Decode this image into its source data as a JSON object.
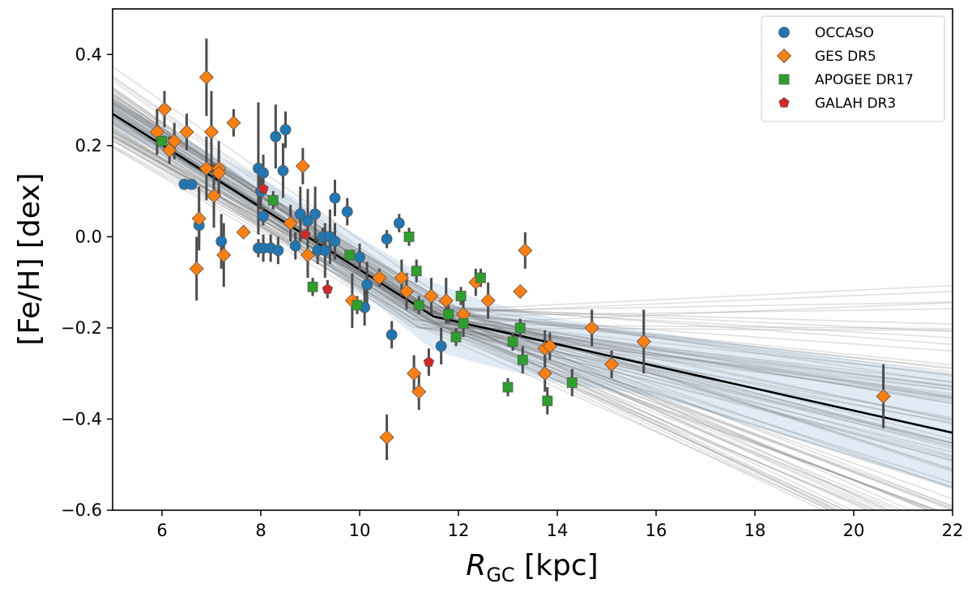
{
  "chart_data": {
    "type": "scatter",
    "title": "",
    "xlabel": {
      "main": "R",
      "sub": "GC",
      "unit": " [kpc]"
    },
    "ylabel": "[Fe/H] [dex]",
    "xlim": [
      5,
      22
    ],
    "ylim": [
      -0.6,
      0.5
    ],
    "xticks": [
      6,
      8,
      10,
      12,
      14,
      16,
      18,
      20,
      22
    ],
    "yticks": [
      -0.6,
      -0.4,
      -0.2,
      0.0,
      0.2,
      0.4
    ],
    "ytick_labels": [
      "−0.6",
      "−0.4",
      "−0.2",
      "0.0",
      "0.2",
      "0.4"
    ],
    "legend_position": "top-right",
    "colors": {
      "occaso": "#1f77b4",
      "ges": "#ff7f0e",
      "apogee": "#2ca02c",
      "galah": "#d62728",
      "errorbar": "#4d4d4d",
      "band": "#d5e4f1",
      "fit": "#000000",
      "mc_lines": "#707070"
    },
    "fit": {
      "description": "Broken linear gradient (median fit)",
      "x": [
        5,
        11.5,
        22
      ],
      "y": [
        0.27,
        -0.175,
        -0.43
      ]
    },
    "band": {
      "x": [
        5,
        6,
        8,
        10,
        11.5,
        12.5,
        14,
        16,
        22
      ],
      "upper": [
        0.3,
        0.24,
        0.13,
        0.0,
        -0.1,
        -0.14,
        -0.18,
        -0.21,
        -0.3
      ],
      "lower": [
        0.24,
        0.18,
        0.05,
        -0.12,
        -0.25,
        -0.28,
        -0.32,
        -0.35,
        -0.55
      ]
    },
    "series": [
      {
        "name": "OCCASO",
        "marker": "circle",
        "points": [
          {
            "x": 6.45,
            "y": 0.115,
            "err": 0.0
          },
          {
            "x": 6.6,
            "y": 0.115,
            "err": 0.0
          },
          {
            "x": 6.75,
            "y": 0.025,
            "err": 0.04
          },
          {
            "x": 7.2,
            "y": -0.01,
            "err": 0.06
          },
          {
            "x": 7.95,
            "y": 0.15,
            "err": 0.145
          },
          {
            "x": 8.0,
            "y": 0.1,
            "err": 0.04
          },
          {
            "x": 8.05,
            "y": 0.14,
            "err": 0.04
          },
          {
            "x": 7.95,
            "y": -0.025,
            "err": 0.02
          },
          {
            "x": 8.05,
            "y": -0.025,
            "err": 0.03
          },
          {
            "x": 8.05,
            "y": 0.045,
            "err": 0.02
          },
          {
            "x": 8.2,
            "y": -0.025,
            "err": 0.03
          },
          {
            "x": 8.3,
            "y": 0.22,
            "err": 0.07
          },
          {
            "x": 8.35,
            "y": -0.03,
            "err": 0.03
          },
          {
            "x": 8.45,
            "y": 0.145,
            "err": 0.06
          },
          {
            "x": 8.5,
            "y": 0.235,
            "err": 0.04
          },
          {
            "x": 8.7,
            "y": -0.02,
            "err": 0.03
          },
          {
            "x": 8.8,
            "y": 0.05,
            "err": 0.06
          },
          {
            "x": 8.95,
            "y": 0.035,
            "err": 0.07
          },
          {
            "x": 9.1,
            "y": 0.05,
            "err": 0.06
          },
          {
            "x": 9.15,
            "y": -0.03,
            "err": 0.03
          },
          {
            "x": 9.3,
            "y": -0.03,
            "err": 0.06
          },
          {
            "x": 9.25,
            "y": 0.0,
            "err": 0.02
          },
          {
            "x": 9.4,
            "y": 0.0,
            "err": 0.06
          },
          {
            "x": 9.5,
            "y": -0.01,
            "err": 0.04
          },
          {
            "x": 9.5,
            "y": 0.085,
            "err": 0.04
          },
          {
            "x": 9.75,
            "y": 0.055,
            "err": 0.03
          },
          {
            "x": 10.0,
            "y": -0.045,
            "err": 0.03
          },
          {
            "x": 10.1,
            "y": -0.155,
            "err": 0.04
          },
          {
            "x": 10.15,
            "y": -0.105,
            "err": 0.05
          },
          {
            "x": 10.55,
            "y": -0.005,
            "err": 0.02
          },
          {
            "x": 10.65,
            "y": -0.215,
            "err": 0.03
          },
          {
            "x": 10.8,
            "y": 0.03,
            "err": 0.02
          },
          {
            "x": 11.65,
            "y": -0.24,
            "err": 0.04
          }
        ]
      },
      {
        "name": "GES DR5",
        "marker": "diamond",
        "points": [
          {
            "x": 5.9,
            "y": 0.23,
            "err": 0.05
          },
          {
            "x": 6.05,
            "y": 0.28,
            "err": 0.04
          },
          {
            "x": 6.15,
            "y": 0.19,
            "err": 0.03
          },
          {
            "x": 6.25,
            "y": 0.21,
            "err": 0.04
          },
          {
            "x": 6.5,
            "y": 0.23,
            "err": 0.04
          },
          {
            "x": 6.7,
            "y": -0.07,
            "err": 0.07
          },
          {
            "x": 6.75,
            "y": 0.04,
            "err": 0.07
          },
          {
            "x": 6.9,
            "y": 0.35,
            "err": 0.085
          },
          {
            "x": 6.9,
            "y": 0.15,
            "err": 0.07
          },
          {
            "x": 7.0,
            "y": 0.23,
            "err": 0.09
          },
          {
            "x": 7.05,
            "y": 0.09,
            "err": 0.07
          },
          {
            "x": 7.15,
            "y": 0.15,
            "err": 0.06
          },
          {
            "x": 7.15,
            "y": 0.14,
            "err": 0.05
          },
          {
            "x": 7.25,
            "y": -0.04,
            "err": 0.07
          },
          {
            "x": 7.45,
            "y": 0.25,
            "err": 0.03
          },
          {
            "x": 7.65,
            "y": 0.01,
            "err": 0.0
          },
          {
            "x": 8.6,
            "y": 0.03,
            "err": 0.04
          },
          {
            "x": 8.85,
            "y": 0.155,
            "err": 0.04
          },
          {
            "x": 8.95,
            "y": -0.04,
            "err": 0.05
          },
          {
            "x": 9.85,
            "y": -0.14,
            "err": 0.06
          },
          {
            "x": 10.4,
            "y": -0.09,
            "err": 0.02
          },
          {
            "x": 10.85,
            "y": -0.09,
            "err": 0.04
          },
          {
            "x": 10.95,
            "y": -0.12,
            "err": 0.04
          },
          {
            "x": 11.1,
            "y": -0.3,
            "err": 0.04
          },
          {
            "x": 11.2,
            "y": -0.34,
            "err": 0.04
          },
          {
            "x": 11.45,
            "y": -0.13,
            "err": 0.04
          },
          {
            "x": 11.75,
            "y": -0.14,
            "err": 0.05
          },
          {
            "x": 12.1,
            "y": -0.17,
            "err": 0.03
          },
          {
            "x": 12.35,
            "y": -0.1,
            "err": 0.03
          },
          {
            "x": 12.6,
            "y": -0.14,
            "err": 0.04
          },
          {
            "x": 13.25,
            "y": -0.12,
            "err": 0.0
          },
          {
            "x": 13.35,
            "y": -0.03,
            "err": 0.04
          },
          {
            "x": 13.75,
            "y": -0.3,
            "err": 0.04
          },
          {
            "x": 13.75,
            "y": -0.245,
            "err": 0.04
          },
          {
            "x": 13.85,
            "y": -0.24,
            "err": 0.03
          },
          {
            "x": 14.7,
            "y": -0.2,
            "err": 0.04
          },
          {
            "x": 15.1,
            "y": -0.28,
            "err": 0.03
          },
          {
            "x": 15.75,
            "y": -0.23,
            "err": 0.07
          },
          {
            "x": 10.55,
            "y": -0.44,
            "err": 0.05
          },
          {
            "x": 20.6,
            "y": -0.35,
            "err": 0.07
          }
        ]
      },
      {
        "name": "APOGEE DR17",
        "marker": "square",
        "points": [
          {
            "x": 6.0,
            "y": 0.21,
            "err": 0.0
          },
          {
            "x": 8.25,
            "y": 0.08,
            "err": 0.02
          },
          {
            "x": 9.05,
            "y": -0.11,
            "err": 0.02
          },
          {
            "x": 9.8,
            "y": -0.04,
            "err": 0.0
          },
          {
            "x": 9.95,
            "y": -0.15,
            "err": 0.02
          },
          {
            "x": 11.0,
            "y": 0.0,
            "err": 0.02
          },
          {
            "x": 11.15,
            "y": -0.075,
            "err": 0.025
          },
          {
            "x": 11.2,
            "y": -0.15,
            "err": 0.02
          },
          {
            "x": 11.8,
            "y": -0.17,
            "err": 0.02
          },
          {
            "x": 11.95,
            "y": -0.22,
            "err": 0.02
          },
          {
            "x": 12.05,
            "y": -0.13,
            "err": 0.02
          },
          {
            "x": 12.1,
            "y": -0.19,
            "err": 0.03
          },
          {
            "x": 12.45,
            "y": -0.09,
            "err": 0.02
          },
          {
            "x": 13.0,
            "y": -0.33,
            "err": 0.02
          },
          {
            "x": 13.1,
            "y": -0.23,
            "err": 0.02
          },
          {
            "x": 13.25,
            "y": -0.2,
            "err": 0.02
          },
          {
            "x": 13.3,
            "y": -0.27,
            "err": 0.03
          },
          {
            "x": 13.8,
            "y": -0.36,
            "err": 0.03
          },
          {
            "x": 14.3,
            "y": -0.32,
            "err": 0.03
          }
        ]
      },
      {
        "name": "GALAH DR3",
        "marker": "pentagon",
        "points": [
          {
            "x": 8.05,
            "y": 0.105,
            "err": 0.0
          },
          {
            "x": 8.9,
            "y": 0.005,
            "err": 0.0
          },
          {
            "x": 9.35,
            "y": -0.115,
            "err": 0.02
          },
          {
            "x": 11.4,
            "y": -0.275,
            "err": 0.03
          }
        ]
      }
    ]
  }
}
